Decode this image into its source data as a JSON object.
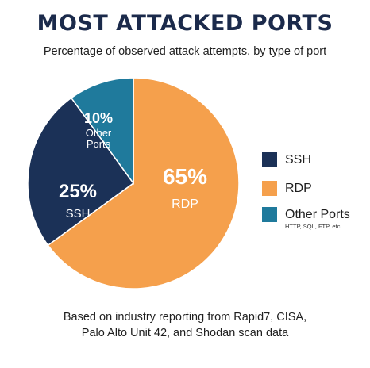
{
  "chart_data": {
    "type": "pie",
    "title": "MOST ATTACKED PORTS",
    "subtitle": "Percentage of observed attack attempts, by type of port",
    "slices": [
      {
        "name": "RDP",
        "value": 65,
        "label": "65%",
        "sublabel": "RDP",
        "color": "#f5a04c"
      },
      {
        "name": "SSH",
        "value": 25,
        "label": "25%",
        "sublabel": "SSH",
        "color": "#1b3157"
      },
      {
        "name": "Other Ports",
        "value": 10,
        "label": "10%",
        "sublabel": "Other Ports",
        "color": "#1f7a9c"
      }
    ],
    "legend": {
      "position": "right",
      "items": [
        {
          "label": "SSH",
          "color": "#1b3157"
        },
        {
          "label": "RDP",
          "color": "#f5a04c"
        },
        {
          "label": "Other Ports",
          "color": "#1f7a9c",
          "sublabel": "HTTP, SQL, FTP, etc."
        }
      ]
    }
  },
  "footnote": {
    "line1": "Based on industry reporting from Rapid7, CISA,",
    "line2": "Palo Alto Unit 42, and Shodan scan data"
  }
}
